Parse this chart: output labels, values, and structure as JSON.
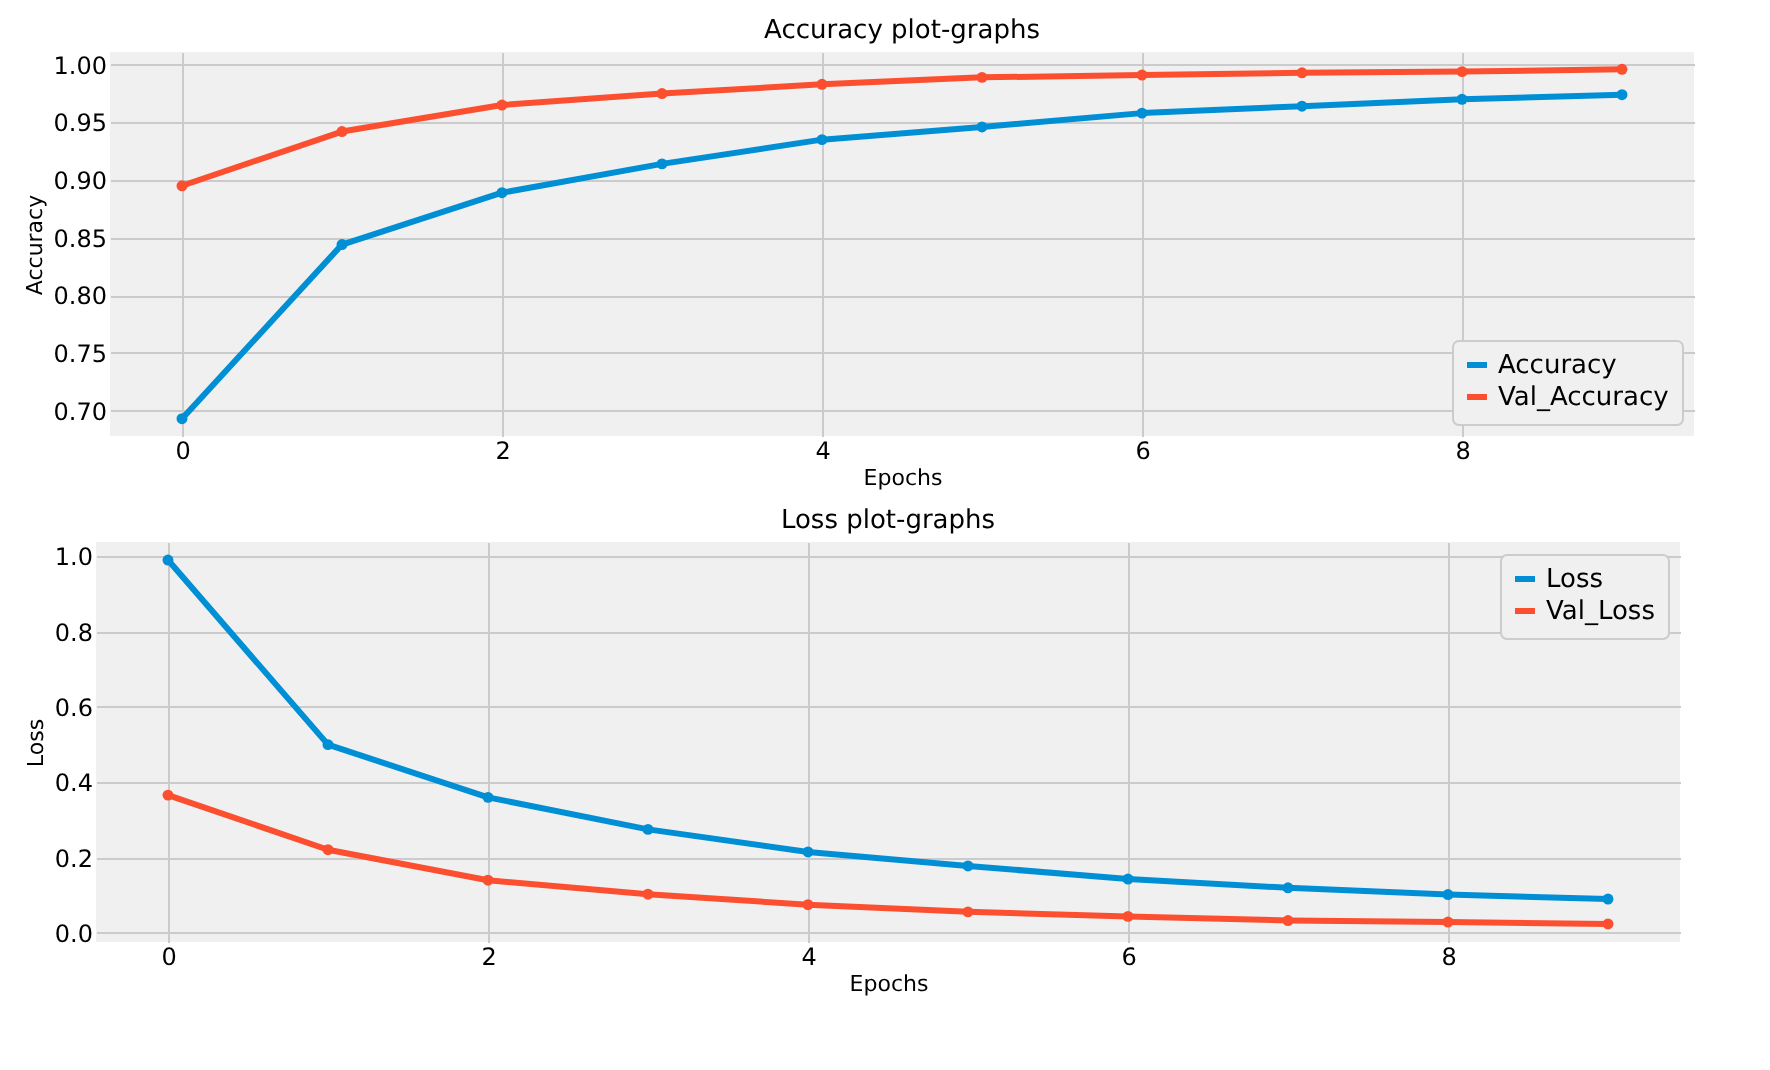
{
  "chart_data": [
    {
      "type": "line",
      "title": "Accuracy plot-graphs",
      "xlabel": "Epochs",
      "ylabel": "Accuracy",
      "x": [
        0,
        1,
        2,
        3,
        4,
        5,
        6,
        7,
        8,
        9
      ],
      "xlim": [
        -0.45,
        9.45
      ],
      "xticks": [
        0,
        2,
        4,
        6,
        8
      ],
      "ylim": [
        0.678,
        1.011
      ],
      "yticks": [
        {
          "value": 0.7,
          "label": "0.70"
        },
        0.75,
        {
          "value": 0.8,
          "label": "0.80"
        },
        0.85,
        {
          "value": 0.9,
          "label": "0.90"
        },
        0.95,
        {
          "value": 1,
          "label": "1.00"
        }
      ],
      "grid": true,
      "legend": "bottom right",
      "marker": "circle",
      "line_style": "solid",
      "series": [
        {
          "name": "Accuracy",
          "color": "#008fd5",
          "values": [
            0.693,
            0.844,
            0.889,
            0.914,
            0.935,
            0.946,
            0.958,
            0.964,
            0.97,
            0.974
          ]
        },
        {
          "name": "Val_Accuracy",
          "color": "#fc4f30",
          "values": [
            0.895,
            0.942,
            0.965,
            0.975,
            0.983,
            0.989,
            0.991,
            0.993,
            0.994,
            0.996
          ]
        }
      ]
    },
    {
      "type": "line",
      "title": "Loss plot-graphs",
      "xlabel": "Epochs",
      "ylabel": "Loss",
      "x": [
        0,
        1,
        2,
        3,
        4,
        5,
        6,
        7,
        8,
        9
      ],
      "xlim": [
        -0.45,
        9.45
      ],
      "xticks": [
        0,
        2,
        4,
        6,
        8
      ],
      "ylim": [
        -0.024,
        1.038
      ],
      "yticks": [
        {
          "value": 0,
          "label": "0.0"
        },
        0.2,
        0.4,
        0.6,
        0.8,
        {
          "value": 1,
          "label": "1.0"
        }
      ],
      "grid": true,
      "legend": "top right",
      "marker": "circle",
      "line_style": "solid",
      "series": [
        {
          "name": "Loss",
          "color": "#008fd5",
          "values": [
            0.99,
            0.5,
            0.36,
            0.275,
            0.215,
            0.178,
            0.143,
            0.12,
            0.102,
            0.09
          ]
        },
        {
          "name": "Val_Loss",
          "color": "#fc4f30",
          "values": [
            0.366,
            0.221,
            0.14,
            0.103,
            0.075,
            0.056,
            0.044,
            0.033,
            0.029,
            0.024
          ]
        }
      ]
    }
  ]
}
